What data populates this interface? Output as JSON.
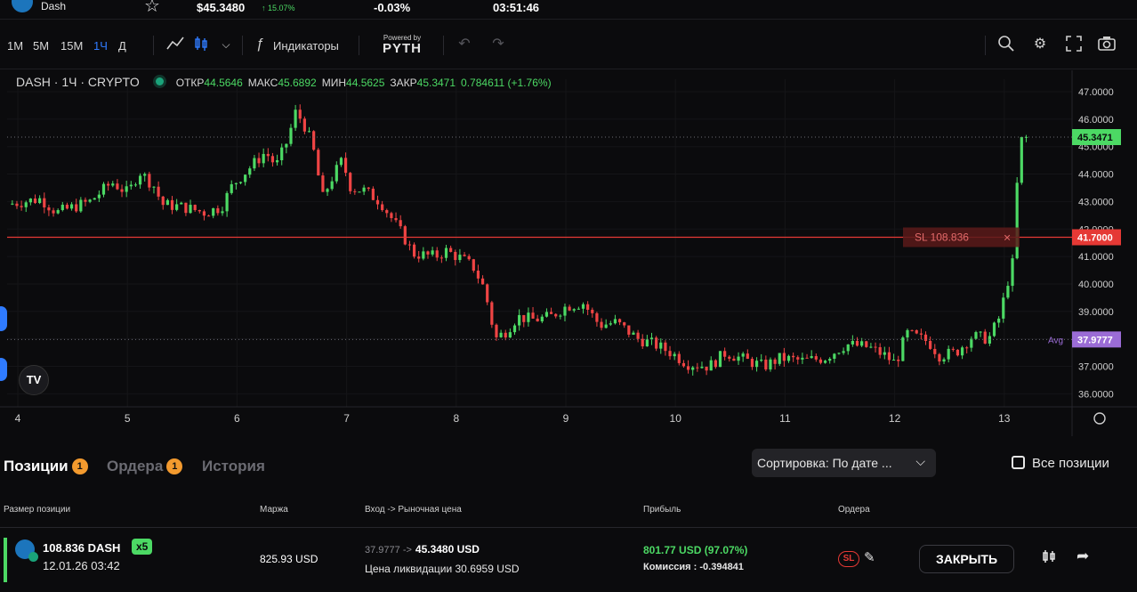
{
  "header": {
    "coin": "Dash",
    "price": "$45.3480",
    "change": "↑ 15.07%",
    "funding": "-0.03%",
    "timer": "03:51:46"
  },
  "toolbar": {
    "timeframes": [
      {
        "label": "1М",
        "active": false
      },
      {
        "label": "5М",
        "active": false
      },
      {
        "label": "15М",
        "active": false
      },
      {
        "label": "1Ч",
        "active": true
      },
      {
        "label": "Д",
        "active": false
      }
    ],
    "indicators": "Индикаторы",
    "powered": "Powered by",
    "pyth": "PYTH"
  },
  "legend": {
    "symbol": "DASH · 1Ч · CRYPTO",
    "open_k": "ОТКР",
    "open_v": "44.5646",
    "high_k": "МАКС",
    "high_v": "45.6892",
    "low_k": "МИН",
    "low_v": "44.5625",
    "close_k": "ЗАКР",
    "close_v": "45.3471",
    "change_v": "0.784611 (+1.76%)"
  },
  "colors": {
    "up": "#4cd964",
    "down": "#ef4444",
    "accent": "#2f7bff",
    "sl": "#e53935",
    "avg": "#9b6cd6"
  },
  "chart_data": {
    "type": "candlestick",
    "title": "",
    "xlabel": "",
    "ylabel": "",
    "ylim": [
      35.6,
      47.4
    ],
    "y_ticks": [
      47,
      46,
      45,
      44,
      43,
      42,
      41,
      40,
      39,
      38,
      37,
      36
    ],
    "y_tick_labels": [
      "47.0000",
      "46.0000",
      "45.0000",
      "44.0000",
      "43.0000",
      "42.0000",
      "41.0000",
      "40.0000",
      "39.0000",
      "38.0000",
      "37.0000",
      "36.0000"
    ],
    "x_ticks": [
      4,
      5,
      6,
      7,
      8,
      9,
      10,
      11,
      12,
      13
    ],
    "x_tick_labels": [
      "4",
      "5",
      "6",
      "7",
      "8",
      "9",
      "10",
      "11",
      "12",
      "13"
    ],
    "xlim": [
      3.95,
      13.6
    ],
    "close_path": [
      [
        3.95,
        42.9
      ],
      [
        4.25,
        43.1
      ],
      [
        4.4,
        42.6
      ],
      [
        4.55,
        42.8
      ],
      [
        4.7,
        43.0
      ],
      [
        4.9,
        43.7
      ],
      [
        5.05,
        43.3
      ],
      [
        5.15,
        44.1
      ],
      [
        5.3,
        43.5
      ],
      [
        5.35,
        42.9
      ],
      [
        5.55,
        42.8
      ],
      [
        5.75,
        42.6
      ],
      [
        5.9,
        42.8
      ],
      [
        6.0,
        43.6
      ],
      [
        6.15,
        44.2
      ],
      [
        6.3,
        44.8
      ],
      [
        6.4,
        44.3
      ],
      [
        6.5,
        45.2
      ],
      [
        6.58,
        46.3
      ],
      [
        6.68,
        45.6
      ],
      [
        6.75,
        44.7
      ],
      [
        6.82,
        43.1
      ],
      [
        6.9,
        43.8
      ],
      [
        7.0,
        44.5
      ],
      [
        7.08,
        43.5
      ],
      [
        7.2,
        43.4
      ],
      [
        7.35,
        43.0
      ],
      [
        7.45,
        42.4
      ],
      [
        7.55,
        41.8
      ],
      [
        7.65,
        41.1
      ],
      [
        7.85,
        41.0
      ],
      [
        7.95,
        41.2
      ],
      [
        8.1,
        40.9
      ],
      [
        8.2,
        40.6
      ],
      [
        8.3,
        39.8
      ],
      [
        8.4,
        38.0
      ],
      [
        8.5,
        38.3
      ],
      [
        8.6,
        38.8
      ],
      [
        8.75,
        38.7
      ],
      [
        8.9,
        38.8
      ],
      [
        9.05,
        39.2
      ],
      [
        9.2,
        39.3
      ],
      [
        9.35,
        38.5
      ],
      [
        9.5,
        38.6
      ],
      [
        9.7,
        38.0
      ],
      [
        9.85,
        37.8
      ],
      [
        10.0,
        37.5
      ],
      [
        10.15,
        37.1
      ],
      [
        10.35,
        37.0
      ],
      [
        10.5,
        37.5
      ],
      [
        10.7,
        37.2
      ],
      [
        10.85,
        37.0
      ],
      [
        11.0,
        37.3
      ],
      [
        11.2,
        37.2
      ],
      [
        11.4,
        37.3
      ],
      [
        11.6,
        37.8
      ],
      [
        11.8,
        37.7
      ],
      [
        11.95,
        37.4
      ],
      [
        12.05,
        37.1
      ],
      [
        12.15,
        38.2
      ],
      [
        12.35,
        37.9
      ],
      [
        12.45,
        37.4
      ],
      [
        12.6,
        37.5
      ],
      [
        12.75,
        38.1
      ],
      [
        12.9,
        38.0
      ],
      [
        13.0,
        38.8
      ],
      [
        13.08,
        40.2
      ],
      [
        13.12,
        41.0
      ],
      [
        13.17,
        44.5
      ],
      [
        13.2,
        45.35
      ]
    ],
    "lines": [
      {
        "label": "SL 108.836",
        "value": 41.7,
        "value_label": "41.7000"
      },
      {
        "label": "Avg",
        "value": 37.9777,
        "value_label": "37.9777"
      },
      {
        "label": "",
        "value": 45.3471,
        "value_label": "45.3471"
      }
    ]
  },
  "positions": {
    "tabs": [
      {
        "label": "Позиции",
        "badge": "1",
        "active": true
      },
      {
        "label": "Ордера",
        "badge": "1",
        "active": false
      },
      {
        "label": "История",
        "badge": "",
        "active": false
      }
    ],
    "sort": "Сортировка: По дате ...",
    "all_positions": "Все позиции",
    "columns": [
      "Размер позиции",
      "Маржа",
      "Вход -> Рыночная цена",
      "Прибыль",
      "Ордера"
    ],
    "row": {
      "size": "108.836 DASH",
      "leverage": "x5",
      "date": "12.01.26 03:42",
      "margin": "825.93 USD",
      "entry": "37.9777 ->",
      "market": "45.3480 USD",
      "liq": "Цена ликвидации 30.6959 USD",
      "pnl": "801.77 USD (97.07%)",
      "fee": "Комиссия : -0.394841",
      "sl": "SL",
      "close": "ЗАКРЫТЬ"
    }
  }
}
